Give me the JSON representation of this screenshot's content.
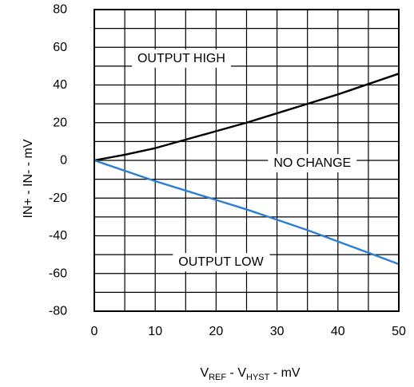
{
  "chart_data": {
    "type": "line",
    "xlabel": {
      "main": "V",
      "sub1": "REF",
      "mid": " - V",
      "sub2": "HYST",
      "tail": " - mV"
    },
    "ylabel": "IN+ - IN- - mV",
    "xlim": [
      0,
      50
    ],
    "ylim": [
      -80,
      80
    ],
    "x_ticks": [
      "0",
      "10",
      "20",
      "30",
      "40",
      "50"
    ],
    "y_ticks": [
      "80",
      "60",
      "40",
      "20",
      "0",
      "-20",
      "-40",
      "-60",
      "-80"
    ],
    "grid": true,
    "grid_step_x": 5,
    "grid_step_y": 10,
    "annotations": [
      {
        "text": "OUTPUT HIGH",
        "x": 14.3,
        "y": 54
      },
      {
        "text": "NO CHANGE",
        "x": 35.8,
        "y": -1.5
      },
      {
        "text": "OUTPUT LOW",
        "x": 20.8,
        "y": -54
      }
    ],
    "series": [
      {
        "color": "#000000",
        "x": [
          0,
          5,
          10,
          15,
          20,
          25,
          30,
          35,
          40,
          45,
          50
        ],
        "y": [
          0,
          3,
          6.5,
          11,
          15.5,
          20,
          25,
          30,
          35,
          40.5,
          46
        ]
      },
      {
        "color": "#2a7fd0",
        "x": [
          0,
          5,
          10,
          15,
          20,
          25,
          30,
          35,
          40,
          45,
          50
        ],
        "y": [
          0,
          -5.5,
          -11,
          -16,
          -21,
          -26,
          -31.5,
          -37,
          -43,
          -49,
          -55
        ]
      }
    ]
  }
}
